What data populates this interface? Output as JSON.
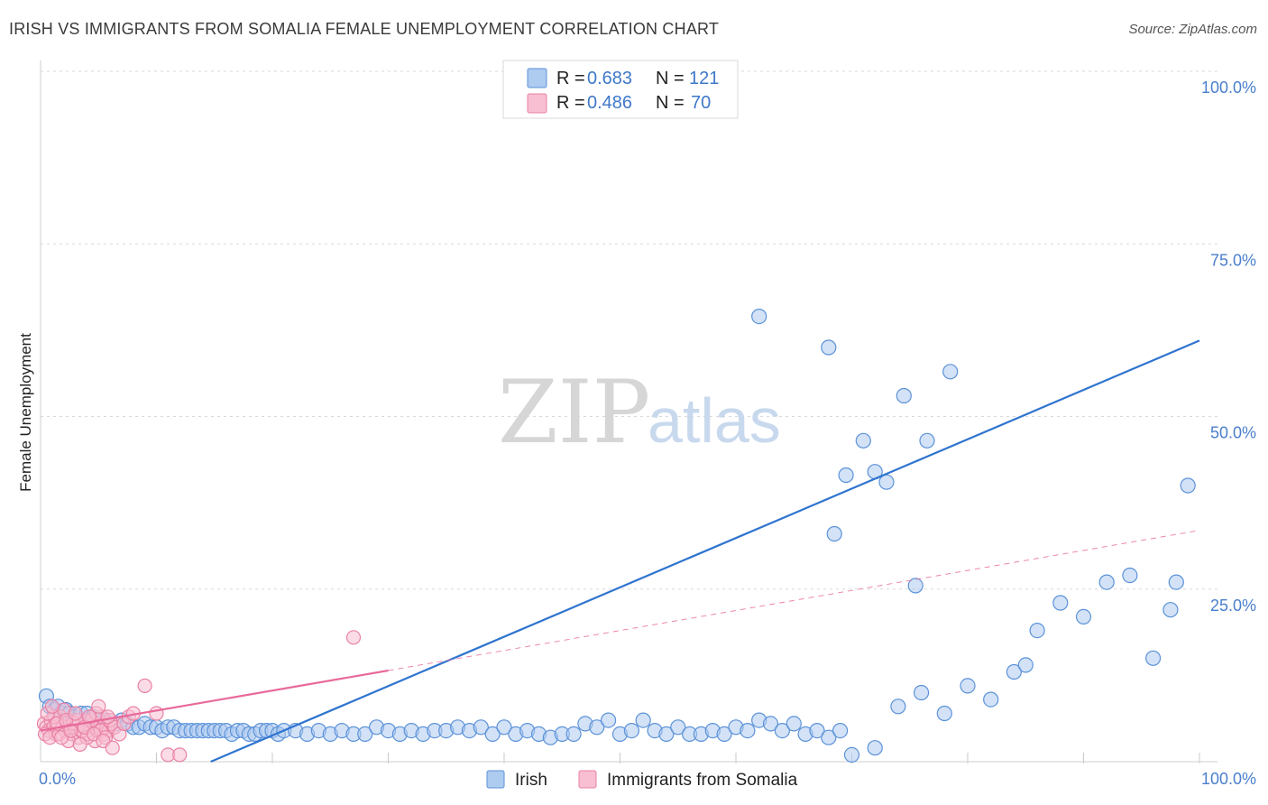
{
  "header": {
    "title": "IRISH VS IMMIGRANTS FROM SOMALIA FEMALE UNEMPLOYMENT CORRELATION CHART",
    "source": "Source: ZipAtlas.com"
  },
  "watermark": {
    "zip": "ZIP",
    "atlas": "atlas"
  },
  "colors": {
    "irish_fill": "#aecbf0",
    "irish_stroke": "#5b92d8",
    "irish_line": "#2f74cf",
    "somalia_fill": "#f7bfd1",
    "somalia_stroke": "#e982a5",
    "somalia_line": "#e8699a",
    "grid": "#d9d9d9",
    "tick_text": "#4a7fcc"
  },
  "legend": {
    "rows": [
      {
        "r_label": "R = ",
        "r_value": "0.683",
        "n_label": "N = ",
        "n_value": "121"
      },
      {
        "r_label": "R = ",
        "r_value": "0.486",
        "n_label": "N = ",
        "n_value": "70"
      }
    ]
  },
  "chart_data": {
    "type": "scatter",
    "title": "IRISH VS IMMIGRANTS FROM SOMALIA FEMALE UNEMPLOYMENT CORRELATION CHART",
    "xlabel": "",
    "ylabel": "Female Unemployment",
    "xlim": [
      0,
      100
    ],
    "ylim": [
      0,
      100
    ],
    "x_ticks": [
      "0.0%",
      "100.0%"
    ],
    "y_ticks": [
      {
        "value": 25,
        "label": "25.0%"
      },
      {
        "value": 50,
        "label": "50.0%"
      },
      {
        "value": 75,
        "label": "75.0%"
      },
      {
        "value": 100,
        "label": "100.0%"
      }
    ],
    "series": [
      {
        "name": "Irish",
        "R": 0.683,
        "N": 121,
        "trend": {
          "x": [
            0,
            100
          ],
          "y": [
            -10.5,
            61.0
          ],
          "style": "solid",
          "drawn_from_y": 0
        },
        "points": [
          [
            0.5,
            9.5
          ],
          [
            0.8,
            8
          ],
          [
            1.2,
            7.5
          ],
          [
            1.5,
            8
          ],
          [
            1.8,
            7
          ],
          [
            2.2,
            7.5
          ],
          [
            2.5,
            7
          ],
          [
            3,
            6.5
          ],
          [
            3.5,
            7
          ],
          [
            4,
            7
          ],
          [
            4.5,
            6.5
          ],
          [
            5,
            6
          ],
          [
            5.5,
            6
          ],
          [
            6,
            5.5
          ],
          [
            6.5,
            5.5
          ],
          [
            7,
            6
          ],
          [
            7.5,
            5.5
          ],
          [
            8,
            5
          ],
          [
            8.5,
            5
          ],
          [
            9,
            5.5
          ],
          [
            9.5,
            5
          ],
          [
            10,
            5
          ],
          [
            10.5,
            4.5
          ],
          [
            11,
            5
          ],
          [
            11.5,
            5
          ],
          [
            12,
            4.5
          ],
          [
            12.5,
            4.5
          ],
          [
            13,
            4.5
          ],
          [
            13.5,
            4.5
          ],
          [
            14,
            4.5
          ],
          [
            14.5,
            4.5
          ],
          [
            15,
            4.5
          ],
          [
            15.5,
            4.5
          ],
          [
            16,
            4.5
          ],
          [
            16.5,
            4
          ],
          [
            17,
            4.5
          ],
          [
            17.5,
            4.5
          ],
          [
            18,
            4
          ],
          [
            18.5,
            4
          ],
          [
            19,
            4.5
          ],
          [
            19.5,
            4.5
          ],
          [
            20,
            4.5
          ],
          [
            20.5,
            4
          ],
          [
            21,
            4.5
          ],
          [
            22,
            4.5
          ],
          [
            23,
            4
          ],
          [
            24,
            4.5
          ],
          [
            25,
            4
          ],
          [
            26,
            4.5
          ],
          [
            27,
            4
          ],
          [
            28,
            4
          ],
          [
            29,
            5
          ],
          [
            30,
            4.5
          ],
          [
            31,
            4
          ],
          [
            32,
            4.5
          ],
          [
            33,
            4
          ],
          [
            34,
            4.5
          ],
          [
            35,
            4.5
          ],
          [
            36,
            5
          ],
          [
            37,
            4.5
          ],
          [
            38,
            5
          ],
          [
            39,
            4
          ],
          [
            40,
            5
          ],
          [
            41,
            4
          ],
          [
            42,
            4.5
          ],
          [
            43,
            4
          ],
          [
            44,
            3.5
          ],
          [
            45,
            4
          ],
          [
            46,
            4
          ],
          [
            47,
            5.5
          ],
          [
            48,
            5
          ],
          [
            49,
            6
          ],
          [
            50,
            4
          ],
          [
            51,
            4.5
          ],
          [
            52,
            6
          ],
          [
            53,
            4.5
          ],
          [
            54,
            4
          ],
          [
            55,
            5
          ],
          [
            56,
            4
          ],
          [
            57,
            4
          ],
          [
            58,
            4.5
          ],
          [
            59,
            4
          ],
          [
            60,
            5
          ],
          [
            61,
            4.5
          ],
          [
            62,
            6
          ],
          [
            63,
            5.5
          ],
          [
            64,
            4.5
          ],
          [
            65,
            5.5
          ],
          [
            66,
            4
          ],
          [
            67,
            4.5
          ],
          [
            68,
            3.5
          ],
          [
            69,
            4.5
          ],
          [
            70,
            1
          ],
          [
            72,
            2
          ],
          [
            74,
            8
          ],
          [
            76,
            10
          ],
          [
            78,
            7
          ],
          [
            80,
            11
          ],
          [
            82,
            9
          ],
          [
            84,
            13
          ],
          [
            85,
            14
          ],
          [
            86,
            19
          ],
          [
            88,
            23
          ],
          [
            90,
            21
          ],
          [
            92,
            26
          ],
          [
            94,
            27
          ],
          [
            96,
            15
          ],
          [
            98,
            26
          ],
          [
            99,
            40
          ],
          [
            62,
            64.5
          ],
          [
            68,
            60
          ],
          [
            69.5,
            41.5
          ],
          [
            71,
            46.5
          ],
          [
            72,
            42
          ],
          [
            73,
            40.5
          ],
          [
            74.5,
            53
          ],
          [
            76.5,
            46.5
          ],
          [
            78.5,
            56.5
          ],
          [
            68.5,
            33
          ],
          [
            75.5,
            25.5
          ],
          [
            97.5,
            22
          ]
        ]
      },
      {
        "name": "Immigrants from Somalia",
        "R": 0.486,
        "N": 70,
        "trend": {
          "x": [
            0,
            100
          ],
          "y": [
            4.5,
            33.5
          ],
          "style": "solid-then-dashed",
          "solid_until_x": 30
        },
        "points": [
          [
            0.3,
            5.5
          ],
          [
            0.5,
            5
          ],
          [
            0.7,
            4.5
          ],
          [
            0.9,
            6
          ],
          [
            1.1,
            5
          ],
          [
            1.3,
            4
          ],
          [
            1.5,
            5.5
          ],
          [
            1.7,
            6.5
          ],
          [
            1.9,
            5
          ],
          [
            2.1,
            4.5
          ],
          [
            2.3,
            5
          ],
          [
            2.5,
            6
          ],
          [
            2.7,
            4
          ],
          [
            2.9,
            5
          ],
          [
            3.1,
            5.5
          ],
          [
            3.3,
            3.5
          ],
          [
            3.5,
            4.5
          ],
          [
            3.7,
            5
          ],
          [
            3.9,
            6
          ],
          [
            4.1,
            4
          ],
          [
            4.3,
            5
          ],
          [
            4.5,
            5.5
          ],
          [
            4.7,
            3
          ],
          [
            4.9,
            4.5
          ],
          [
            5.1,
            5
          ],
          [
            5.3,
            6.5
          ],
          [
            5.5,
            4
          ],
          [
            5.7,
            5
          ],
          [
            5.9,
            4.5
          ],
          [
            6.1,
            5.5
          ],
          [
            0.4,
            4
          ],
          [
            0.8,
            3.5
          ],
          [
            1.2,
            6.5
          ],
          [
            1.6,
            4
          ],
          [
            2.0,
            7.5
          ],
          [
            2.4,
            3
          ],
          [
            2.8,
            5.5
          ],
          [
            3.2,
            6
          ],
          [
            3.6,
            4.5
          ],
          [
            4.0,
            3.5
          ],
          [
            4.4,
            6
          ],
          [
            4.8,
            7
          ],
          [
            5.2,
            4.5
          ],
          [
            5.6,
            3.5
          ],
          [
            6.0,
            6
          ],
          [
            6.4,
            5
          ],
          [
            6.8,
            4
          ],
          [
            7.2,
            5.5
          ],
          [
            7.6,
            6.5
          ],
          [
            8,
            7
          ],
          [
            0.6,
            7
          ],
          [
            1.0,
            8
          ],
          [
            1.4,
            5.5
          ],
          [
            1.8,
            3.5
          ],
          [
            2.2,
            6
          ],
          [
            2.6,
            4.5
          ],
          [
            3.0,
            7
          ],
          [
            3.4,
            2.5
          ],
          [
            3.8,
            5
          ],
          [
            4.2,
            6.5
          ],
          [
            4.6,
            4
          ],
          [
            5.0,
            8
          ],
          [
            5.4,
            3
          ],
          [
            5.8,
            6.5
          ],
          [
            6.2,
            2
          ],
          [
            9,
            11
          ],
          [
            10,
            7
          ],
          [
            11,
            1
          ],
          [
            12,
            1
          ],
          [
            27,
            18
          ]
        ]
      }
    ]
  },
  "bottom_legend": {
    "items": [
      {
        "label": "Irish"
      },
      {
        "label": "Immigrants from Somalia"
      }
    ]
  }
}
